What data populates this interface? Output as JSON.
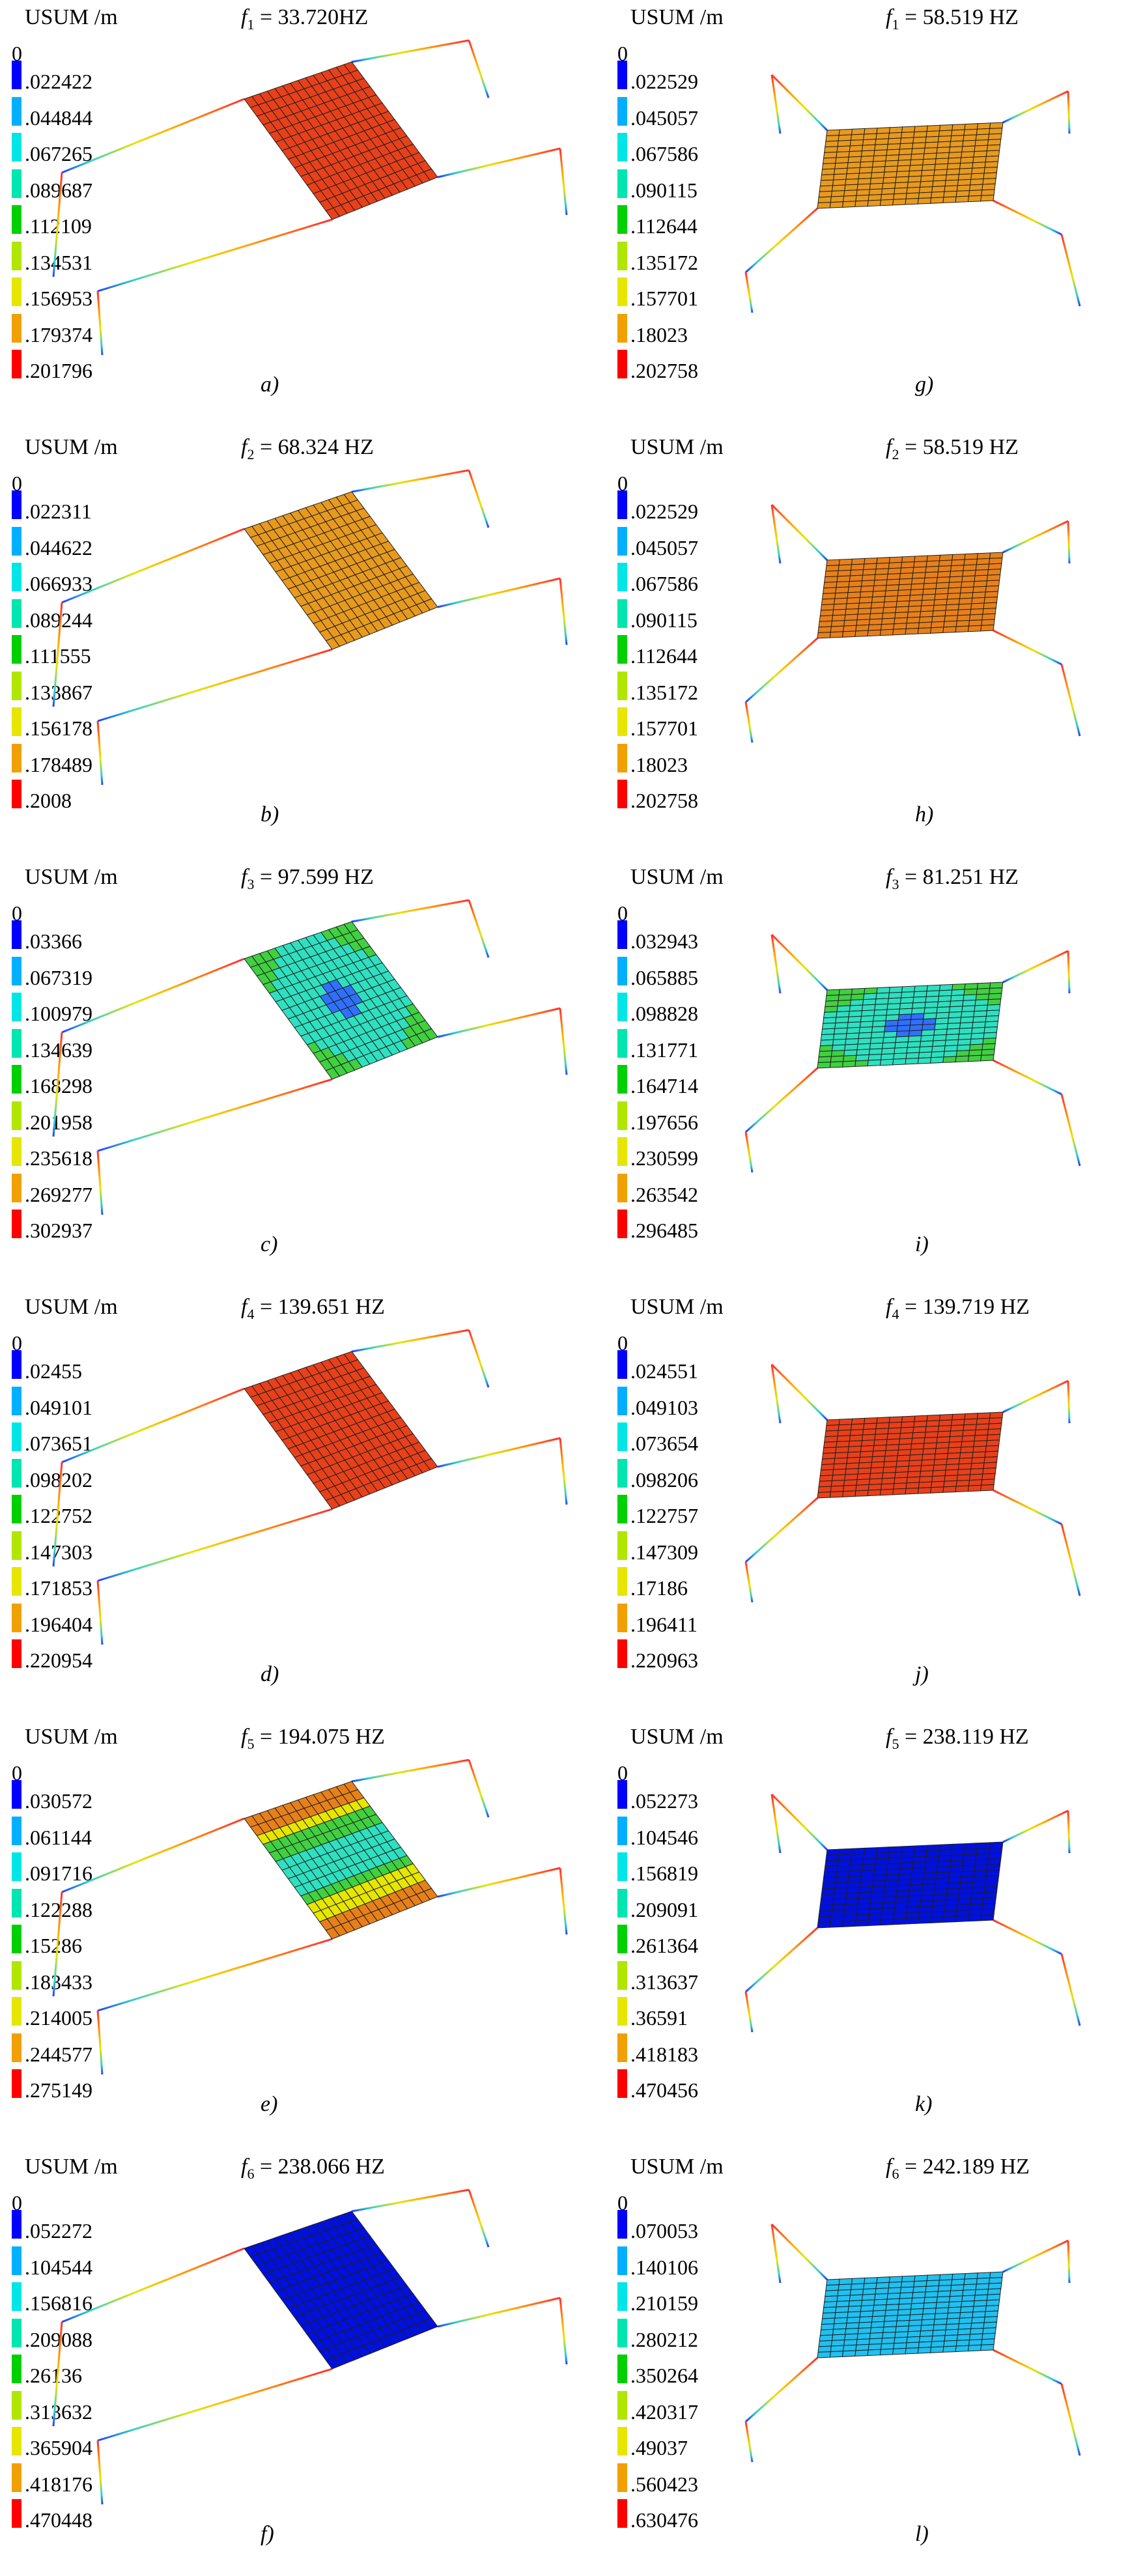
{
  "legend_colors": [
    "#0000ff",
    "#00b0ff",
    "#00e6e6",
    "#00e6b0",
    "#00d000",
    "#b0e600",
    "#e6e600",
    "#f0a000",
    "#ff0000"
  ],
  "panels": [
    {
      "id": "a",
      "unit": "USUM /m",
      "freq_prefix": "f",
      "freq_sub": "1",
      "freq_text": " = 33.720HZ",
      "letter": "a)",
      "zero": "0",
      "legend": [
        ".022422",
        ".044844",
        ".067265",
        ".089687",
        ".112109",
        ".134531",
        ".156953",
        ".179374",
        ".201796"
      ],
      "mode": {
        "type": "uniform",
        "color": "#e8401a"
      }
    },
    {
      "id": "g",
      "unit": "USUM /m",
      "freq_prefix": "f",
      "freq_sub": "1",
      "freq_text": " = 58.519 HZ",
      "letter": "g)",
      "zero": "0",
      "legend": [
        ".022529",
        ".045057",
        ".067586",
        ".090115",
        ".112644",
        ".135172",
        ".157701",
        ".18023",
        ".202758"
      ],
      "mode": {
        "type": "uniform",
        "color": "#e89a1e"
      }
    },
    {
      "id": "b",
      "unit": "USUM /m",
      "freq_prefix": "f",
      "freq_sub": "2",
      "freq_text": " = 68.324 HZ",
      "letter": "b)",
      "zero": "0",
      "legend": [
        ".022311",
        ".044622",
        ".066933",
        ".089244",
        ".111555",
        ".133867",
        ".156178",
        ".178489",
        ".2008"
      ],
      "mode": {
        "type": "uniform",
        "color": "#e89a1e"
      }
    },
    {
      "id": "h",
      "unit": "USUM /m",
      "freq_prefix": "f",
      "freq_sub": "2",
      "freq_text": " = 58.519 HZ",
      "letter": "h)",
      "zero": "0",
      "legend": [
        ".022529",
        ".045057",
        ".067586",
        ".090115",
        ".112644",
        ".135172",
        ".157701",
        ".18023",
        ".202758"
      ],
      "mode": {
        "type": "uniform",
        "color": "#e8801a"
      }
    },
    {
      "id": "c",
      "unit": "USUM /m",
      "freq_prefix": "f",
      "freq_sub": "3",
      "freq_text": " = 97.599 HZ",
      "letter": "c)",
      "zero": "0",
      "legend": [
        ".03366",
        ".067319",
        ".100979",
        ".134639",
        ".168298",
        ".201958",
        ".235618",
        ".269277",
        ".302937"
      ],
      "mode": {
        "type": "center",
        "color": "#2ee0c0",
        "center_color": "#3070ff",
        "edge_color": "#40d040"
      }
    },
    {
      "id": "i",
      "unit": "USUM /m",
      "freq_prefix": "f",
      "freq_sub": "3",
      "freq_text": " = 81.251 HZ",
      "letter": "i)",
      "zero": "0",
      "legend": [
        ".032943",
        ".065885",
        ".098828",
        ".131771",
        ".164714",
        ".197656",
        ".230599",
        ".263542",
        ".296485"
      ],
      "mode": {
        "type": "center",
        "color": "#2ee0c0",
        "center_color": "#3070ff",
        "edge_color": "#40d040"
      }
    },
    {
      "id": "d",
      "unit": "USUM /m",
      "freq_prefix": "f",
      "freq_sub": "4",
      "freq_text": " = 139.651 HZ",
      "letter": "d)",
      "zero": "0",
      "legend": [
        ".02455",
        ".049101",
        ".073651",
        ".098202",
        ".122752",
        ".147303",
        ".171853",
        ".196404",
        ".220954"
      ],
      "mode": {
        "type": "uniform",
        "color": "#e8401a"
      }
    },
    {
      "id": "j",
      "unit": "USUM /m",
      "freq_prefix": "f",
      "freq_sub": "4",
      "freq_text": " = 139.719 HZ",
      "letter": "j)",
      "zero": "0",
      "legend": [
        ".024551",
        ".049103",
        ".073654",
        ".098206",
        ".122757",
        ".147309",
        ".17186",
        ".196411",
        ".220963"
      ],
      "mode": {
        "type": "uniform",
        "color": "#e8401a"
      }
    },
    {
      "id": "e",
      "unit": "USUM /m",
      "freq_prefix": "f",
      "freq_sub": "5",
      "freq_text": " = 194.075 HZ",
      "letter": "e)",
      "zero": "0",
      "legend": [
        ".030572",
        ".061144",
        ".091716",
        ".122288",
        ".15286",
        ".183433",
        ".214005",
        ".244577",
        ".275149"
      ],
      "mode": {
        "type": "bands",
        "colors": [
          "#e8801a",
          "#e6e600",
          "#40d040",
          "#2ee0c0",
          "#2ee0c0",
          "#40d040",
          "#e6e600",
          "#e8801a"
        ]
      }
    },
    {
      "id": "k",
      "unit": "USUM /m",
      "freq_prefix": "f",
      "freq_sub": "5",
      "freq_text": " = 238.119 HZ",
      "letter": "k)",
      "zero": "0",
      "legend": [
        ".052273",
        ".104546",
        ".156819",
        ".209091",
        ".261364",
        ".313637",
        ".36591",
        ".418183",
        ".470456"
      ],
      "mode": {
        "type": "uniform",
        "color": "#0010e0"
      }
    },
    {
      "id": "f",
      "unit": "USUM /m",
      "freq_prefix": "f",
      "freq_sub": "6",
      "freq_text": " = 238.066 HZ",
      "letter": "f)",
      "zero": "0",
      "legend": [
        ".052272",
        ".104544",
        ".156816",
        ".209088",
        ".26136",
        ".313632",
        ".365904",
        ".418176",
        ".470448"
      ],
      "mode": {
        "type": "uniform",
        "color": "#0010e0"
      }
    },
    {
      "id": "l",
      "unit": "USUM /m",
      "freq_prefix": "f",
      "freq_sub": "6",
      "freq_text": " = 242.189 HZ",
      "letter": "l)",
      "zero": "0",
      "legend": [
        ".070053",
        ".140106",
        ".210159",
        ".280212",
        ".350264",
        ".420317",
        ".49037",
        ".560423",
        ".630476"
      ],
      "mode": {
        "type": "uniform",
        "color": "#20c0f0"
      }
    }
  ]
}
